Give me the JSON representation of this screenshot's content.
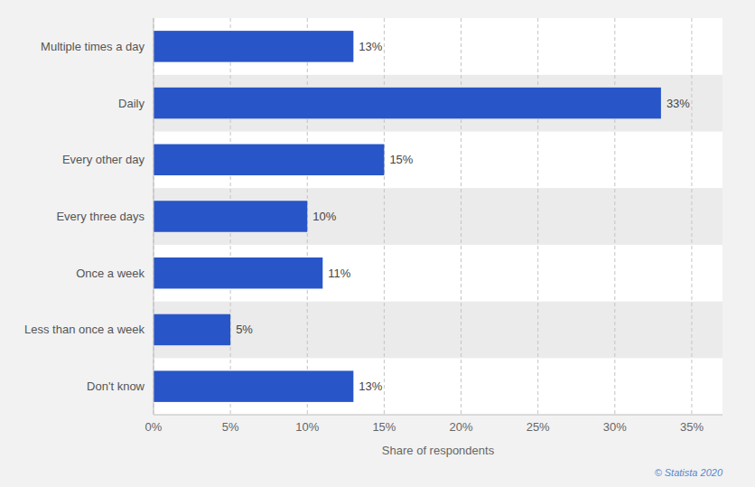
{
  "chart_data": {
    "type": "bar",
    "orientation": "horizontal",
    "categories": [
      "Don't know",
      "Less than once a week",
      "Once a week",
      "Every three days",
      "Every other day",
      "Daily",
      "Multiple times a day"
    ],
    "values": [
      13,
      5,
      11,
      10,
      15,
      33,
      13
    ],
    "value_labels": [
      "13%",
      "5%",
      "11%",
      "10%",
      "15%",
      "33%",
      "13%"
    ],
    "data_labels": true,
    "color": "#2855C8",
    "xlim": [
      0,
      37
    ],
    "xticks": [
      {
        "value": 0,
        "label": "0%"
      },
      {
        "value": 5,
        "label": "5%"
      },
      {
        "value": 10,
        "label": "10%"
      },
      {
        "value": 15,
        "label": "15%"
      },
      {
        "value": 20,
        "label": "20%"
      },
      {
        "value": 25,
        "label": "25%"
      },
      {
        "value": 30,
        "label": "30%"
      },
      {
        "value": 35,
        "label": "35%"
      }
    ],
    "xlabel": "Share of respondents",
    "grid": true,
    "annotations": [
      "© Statista 2020"
    ]
  }
}
